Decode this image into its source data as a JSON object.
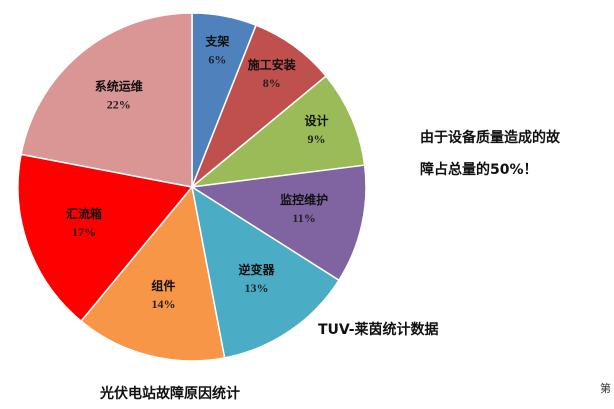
{
  "chart_data": {
    "type": "pie",
    "title": "光伏电站故障原因统计",
    "categories": [
      "支架",
      "施工安装",
      "设计",
      "监控维护",
      "逆变器",
      "组件",
      "汇流箱",
      "系统运维"
    ],
    "values": [
      6,
      8,
      9,
      11,
      13,
      14,
      17,
      22
    ],
    "value_labels": [
      "6%",
      "8%",
      "9%",
      "11%",
      "13%",
      "14%",
      "17%",
      "22%"
    ],
    "colors": [
      "#4f81bd",
      "#c0504d",
      "#9bbb59",
      "#8064a2",
      "#4bacc6",
      "#f79646",
      "#ff0000",
      "#d99694"
    ],
    "annotations": [
      "由于设备质量造成的故",
      "障占总量的50%！",
      "TUV-莱茵统计数据",
      "第"
    ]
  }
}
